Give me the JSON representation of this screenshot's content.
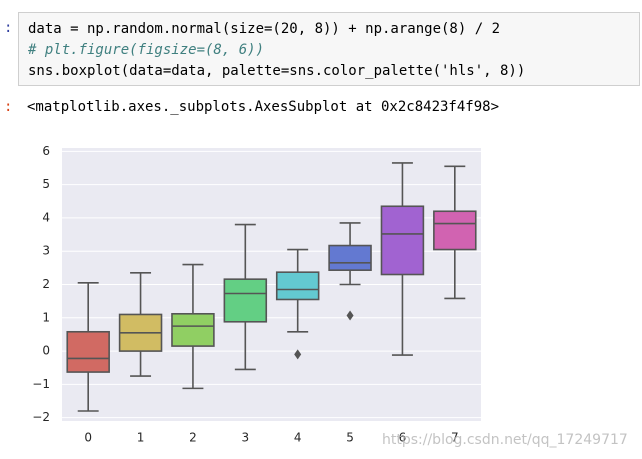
{
  "prompt": ":",
  "code": [
    "data = np.random.normal(size=(20, 8)) + np.arange(8) / 2",
    "# plt.figure(figsize=(8, 6))",
    "sns.boxplot(data=data, palette=sns.color_palette('hls', 8))"
  ],
  "output_prompt": ":",
  "output": "<matplotlib.axes._subplots.AxesSubplot at 0x2c8423f4f98>",
  "watermark": "https://blog.csdn.net/qq_17249717",
  "chart_data": {
    "type": "box",
    "categories": [
      "0",
      "1",
      "2",
      "3",
      "4",
      "5",
      "6",
      "7"
    ],
    "boxes": [
      {
        "whislo": -1.8,
        "q1": -0.63,
        "med": -0.22,
        "q3": 0.58,
        "whishi": 2.05,
        "fliers": []
      },
      {
        "whislo": -0.75,
        "q1": 0.0,
        "med": 0.55,
        "q3": 1.1,
        "whishi": 2.35,
        "fliers": []
      },
      {
        "whislo": -1.12,
        "q1": 0.15,
        "med": 0.75,
        "q3": 1.12,
        "whishi": 2.6,
        "fliers": []
      },
      {
        "whislo": -0.55,
        "q1": 0.88,
        "med": 1.73,
        "q3": 2.16,
        "whishi": 3.8,
        "fliers": []
      },
      {
        "whislo": 0.58,
        "q1": 1.55,
        "med": 1.85,
        "q3": 2.37,
        "whishi": 3.05,
        "fliers": [
          -0.1
        ]
      },
      {
        "whislo": 2.0,
        "q1": 2.43,
        "med": 2.65,
        "q3": 3.17,
        "whishi": 3.85,
        "fliers": [
          1.07
        ]
      },
      {
        "whislo": -0.12,
        "q1": 2.3,
        "med": 3.52,
        "q3": 4.35,
        "whishi": 5.65,
        "fliers": []
      },
      {
        "whislo": 1.58,
        "q1": 3.05,
        "med": 3.83,
        "q3": 4.2,
        "whishi": 5.55,
        "fliers": []
      }
    ],
    "colors": [
      "#d16a63",
      "#d1bc63",
      "#90cf63",
      "#63cf84",
      "#63c9d1",
      "#6379d1",
      "#a163d1",
      "#d163b1"
    ],
    "ylim": [
      -2.1,
      6.1
    ],
    "yticks": [
      {
        "value": -2,
        "label": "−2"
      },
      {
        "value": -1,
        "label": "−1"
      },
      0,
      1,
      2,
      3,
      4,
      5,
      6
    ],
    "grid": true
  }
}
